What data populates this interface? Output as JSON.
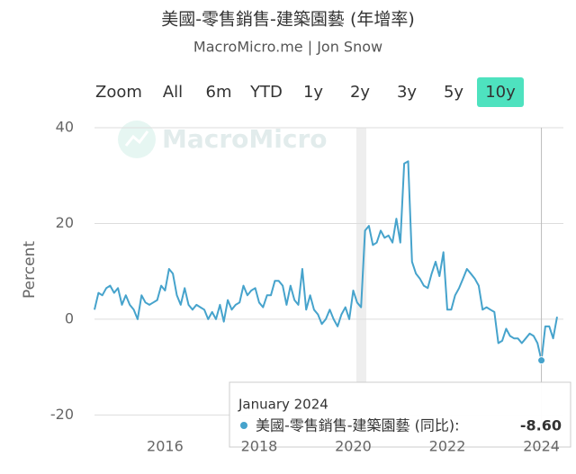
{
  "chart_data": {
    "type": "line",
    "title": "美國-零售銷售-建築園藝 (年增率)",
    "subtitle": "MacroMicro.me | Jon Snow",
    "watermark": "MacroMicro",
    "y_label": "Percent",
    "range_selector": {
      "label": "Zoom",
      "buttons": [
        {
          "label": "All",
          "active": false
        },
        {
          "label": "6m",
          "active": false
        },
        {
          "label": "YTD",
          "active": false
        },
        {
          "label": "1y",
          "active": false
        },
        {
          "label": "2y",
          "active": false
        },
        {
          "label": "3y",
          "active": false
        },
        {
          "label": "5y",
          "active": false
        },
        {
          "label": "10y",
          "active": true
        }
      ]
    },
    "categories": [
      null,
      null,
      null,
      null,
      null,
      null,
      null,
      null,
      null,
      null,
      null,
      null,
      null,
      null,
      null,
      null,
      null,
      null,
      "2016",
      null,
      null,
      null,
      null,
      null,
      null,
      null,
      null,
      null,
      null,
      null,
      null,
      null,
      null,
      null,
      null,
      null,
      null,
      null,
      null,
      null,
      null,
      null,
      "2018",
      null,
      null,
      null,
      null,
      null,
      null,
      null,
      null,
      null,
      null,
      null,
      null,
      null,
      null,
      null,
      null,
      null,
      null,
      null,
      null,
      null,
      null,
      null,
      "2020",
      null,
      null,
      null,
      null,
      null,
      null,
      null,
      null,
      null,
      null,
      null,
      null,
      null,
      null,
      null,
      null,
      null,
      null,
      null,
      null,
      null,
      null,
      null,
      "2022",
      null,
      null,
      null,
      null,
      null,
      null,
      null,
      null,
      null,
      null,
      null,
      null,
      null,
      null,
      null,
      null,
      null,
      null,
      null,
      null,
      null,
      null,
      null,
      "2024",
      null,
      null,
      null,
      null
    ],
    "series": [
      {
        "name": "美國-零售銷售-建築園藝 (同比)",
        "color": "#46a3cc",
        "values": [
          2,
          5.5,
          5,
          6.5,
          7,
          5.5,
          6.5,
          3,
          5,
          3,
          2,
          0,
          5,
          3.5,
          3,
          3.5,
          4,
          7,
          6,
          10.5,
          9.5,
          5,
          3,
          6.5,
          3,
          2,
          3,
          2.5,
          2,
          0,
          1.5,
          0,
          3,
          -0.5,
          4,
          2,
          3,
          3.5,
          7,
          5,
          6,
          6.5,
          3.5,
          2.5,
          5,
          5,
          8,
          8,
          7,
          3,
          7,
          4,
          3,
          10.5,
          2,
          5,
          2,
          1,
          -1,
          0,
          2,
          0,
          -1.5,
          1,
          2.5,
          0,
          6,
          3.5,
          2.5,
          18.5,
          19.5,
          15.5,
          16,
          18.5,
          17,
          17.5,
          16,
          21,
          16,
          32.5,
          33,
          12,
          9.5,
          8.5,
          7,
          6.5,
          9.5,
          12,
          9,
          14,
          2,
          2,
          5,
          6.5,
          8.5,
          10.5,
          9.5,
          8.5,
          7,
          2,
          2.5,
          2,
          1.5,
          -5,
          -4.5,
          -2,
          -3.5,
          -4,
          -4,
          -5,
          -4,
          -3,
          -3.5,
          -5,
          -8.6,
          -1.5,
          -1.5,
          -4,
          0.5
        ]
      }
    ],
    "ylim": [
      -22,
      40
    ],
    "yticks": [
      -20,
      0,
      20,
      40
    ],
    "grid": true,
    "tooltip": {
      "title": "January 2024",
      "label": "美國-零售銷售-建築園藝 (同比):",
      "value": -8.6,
      "value_label": "-8.60"
    }
  }
}
